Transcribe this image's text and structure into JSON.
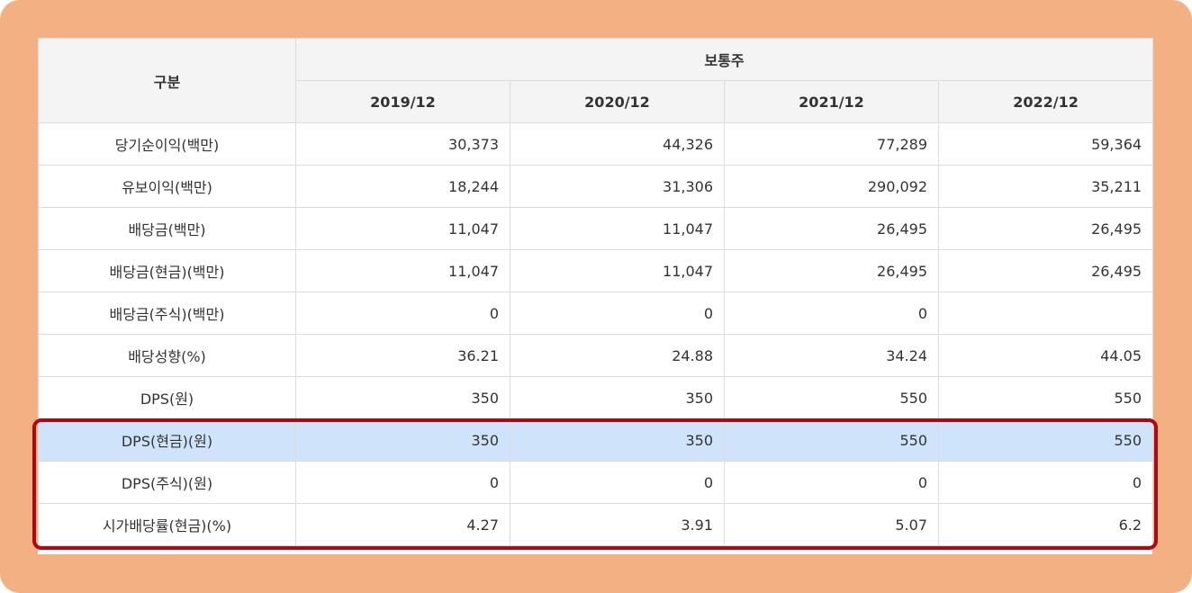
{
  "header": {
    "category_label": "구분",
    "group_label": "보통주",
    "periods": [
      "2019/12",
      "2020/12",
      "2021/12",
      "2022/12"
    ]
  },
  "rows": [
    {
      "label": "당기순이익(백만)",
      "values": [
        "30,373",
        "44,326",
        "77,289",
        "59,364"
      ]
    },
    {
      "label": "유보이익(백만)",
      "values": [
        "18,244",
        "31,306",
        "290,092",
        "35,211"
      ]
    },
    {
      "label": "배당금(백만)",
      "values": [
        "11,047",
        "11,047",
        "26,495",
        "26,495"
      ]
    },
    {
      "label": "배당금(현금)(백만)",
      "values": [
        "11,047",
        "11,047",
        "26,495",
        "26,495"
      ]
    },
    {
      "label": "배당금(주식)(백만)",
      "values": [
        "0",
        "0",
        "0",
        ""
      ]
    },
    {
      "label": "배당성향(%)",
      "values": [
        "36.21",
        "24.88",
        "34.24",
        "44.05"
      ]
    },
    {
      "label": "DPS(원)",
      "values": [
        "350",
        "350",
        "550",
        "550"
      ]
    },
    {
      "label": "DPS(현금)(원)",
      "values": [
        "350",
        "350",
        "550",
        "550"
      ],
      "selected": true
    },
    {
      "label": "DPS(주식)(원)",
      "values": [
        "0",
        "0",
        "0",
        "0"
      ]
    },
    {
      "label": "시가배당률(현금)(%)",
      "values": [
        "4.27",
        "3.91",
        "5.07",
        "6.2"
      ]
    }
  ],
  "colors": {
    "frame_background": "#f2b083",
    "header_background": "#f4f4f4",
    "selected_row_background": "#cfe3fb",
    "highlight_border": "#b00812",
    "grid_border": "#dcdcdc"
  }
}
